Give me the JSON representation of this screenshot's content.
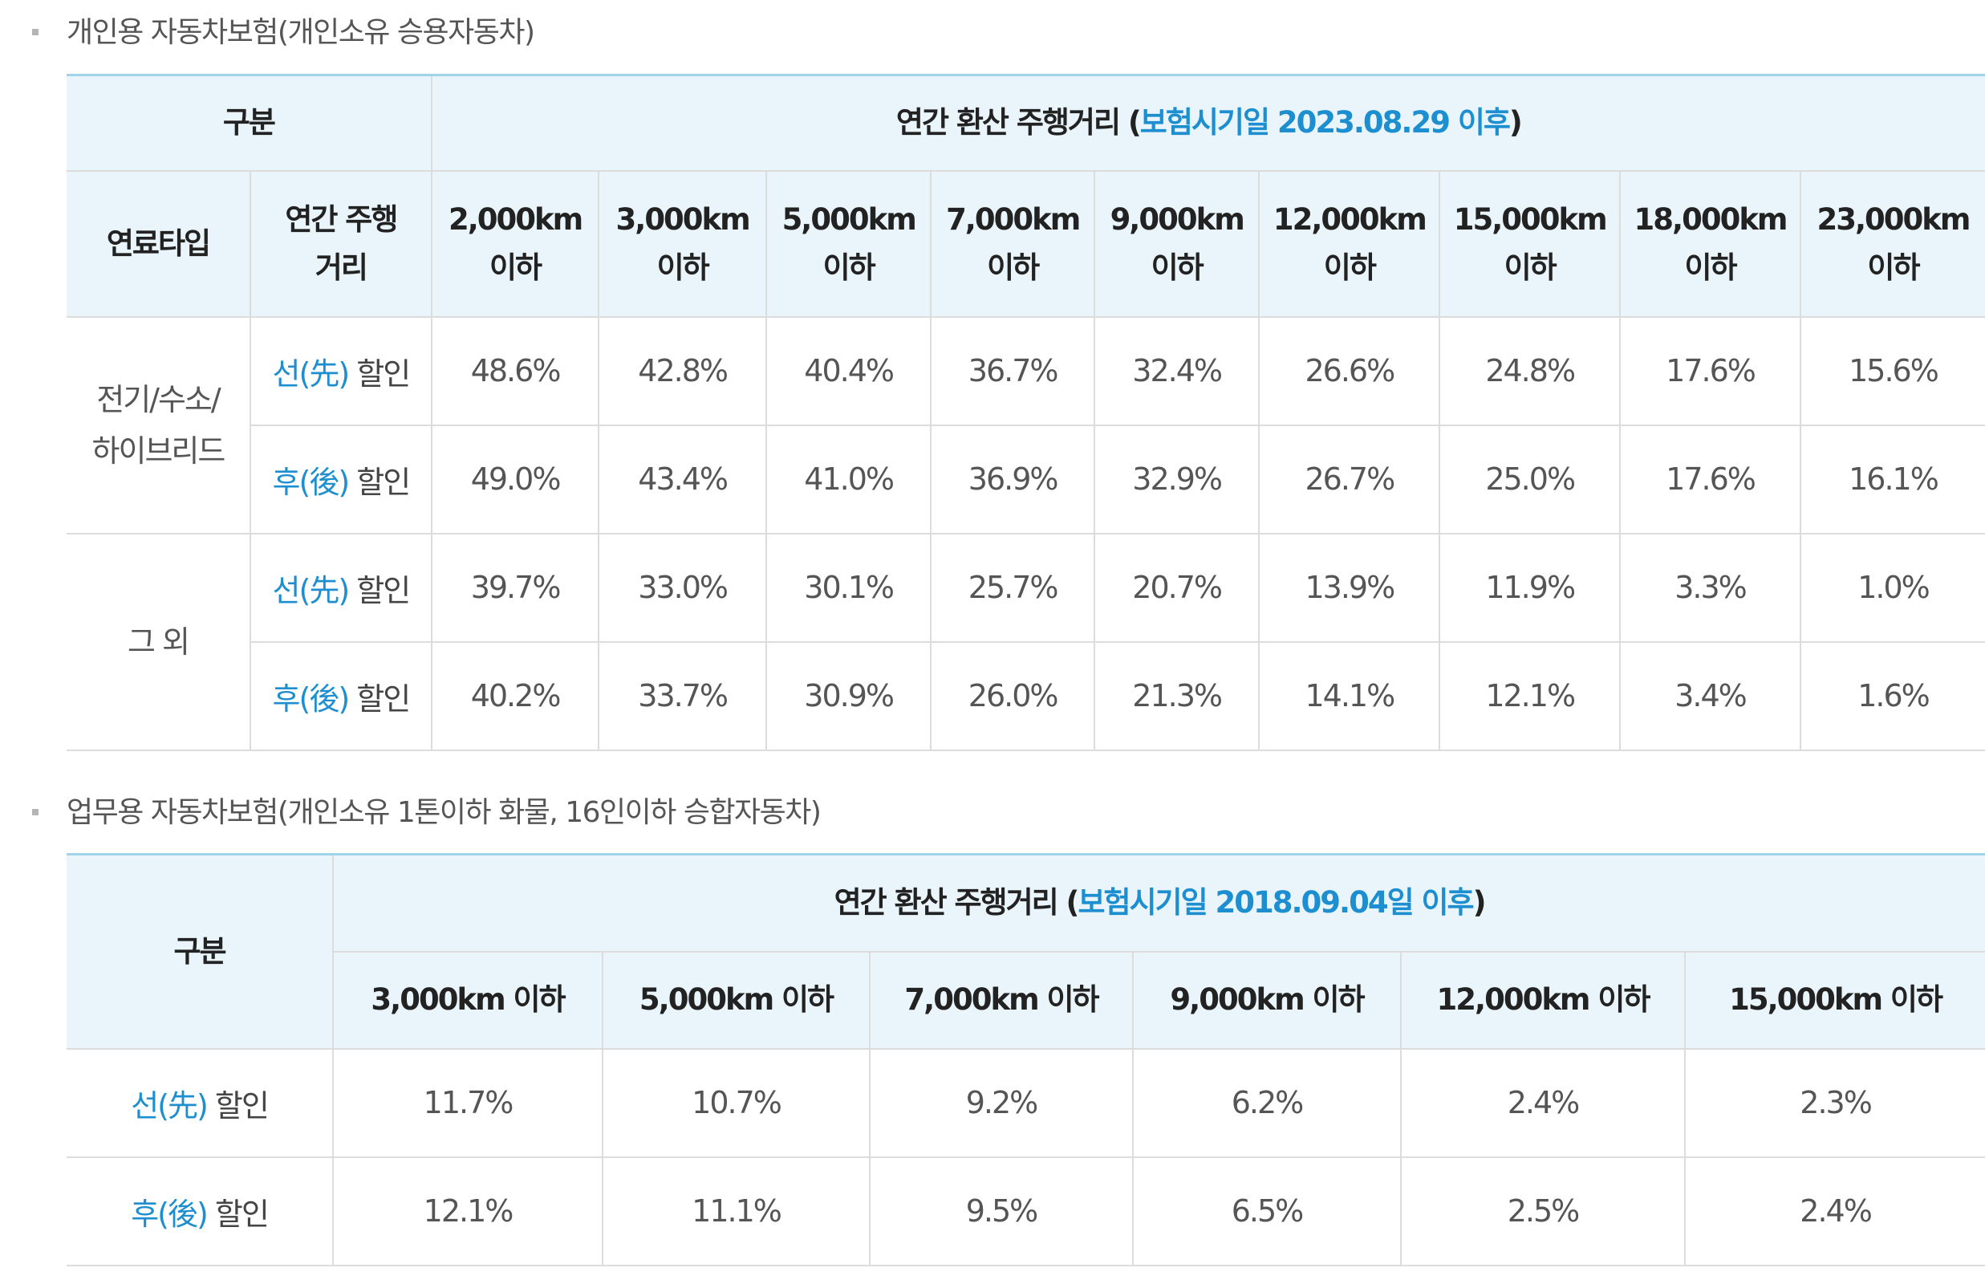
{
  "personal": {
    "title": "개인용 자동차보험(개인소유 승용자동차)",
    "header_category": "구분",
    "header_main_prefix": "연간 환산 주행거리 (",
    "header_main_highlight": "보험시기일 2023.08.29 이후",
    "header_main_suffix": ")",
    "col_fuel_type": "연료타입",
    "col_annual_distance": "연간 주행거리",
    "columns": [
      {
        "top": "2,000km",
        "bottom": "이하"
      },
      {
        "top": "3,000km",
        "bottom": "이하"
      },
      {
        "top": "5,000km",
        "bottom": "이하"
      },
      {
        "top": "7,000km",
        "bottom": "이하"
      },
      {
        "top": "9,000km",
        "bottom": "이하"
      },
      {
        "top": "12,000km",
        "bottom": "이하"
      },
      {
        "top": "15,000km",
        "bottom": "이하"
      },
      {
        "top": "18,000km",
        "bottom": "이하"
      },
      {
        "top": "23,000km",
        "bottom": "이하"
      }
    ],
    "groups": [
      {
        "fuel_line1": "전기/수소/",
        "fuel_line2": "하이브리드",
        "rows": [
          {
            "type_blue": "선(先)",
            "type_suffix": " 할인",
            "values": [
              "48.6%",
              "42.8%",
              "40.4%",
              "36.7%",
              "32.4%",
              "26.6%",
              "24.8%",
              "17.6%",
              "15.6%"
            ]
          },
          {
            "type_blue": "후(後)",
            "type_suffix": " 할인",
            "values": [
              "49.0%",
              "43.4%",
              "41.0%",
              "36.9%",
              "32.9%",
              "26.7%",
              "25.0%",
              "17.6%",
              "16.1%"
            ]
          }
        ]
      },
      {
        "fuel_line1": "그 외",
        "fuel_line2": "",
        "rows": [
          {
            "type_blue": "선(先)",
            "type_suffix": " 할인",
            "values": [
              "39.7%",
              "33.0%",
              "30.1%",
              "25.7%",
              "20.7%",
              "13.9%",
              "11.9%",
              "3.3%",
              "1.0%"
            ]
          },
          {
            "type_blue": "후(後)",
            "type_suffix": " 할인",
            "values": [
              "40.2%",
              "33.7%",
              "30.9%",
              "26.0%",
              "21.3%",
              "14.1%",
              "12.1%",
              "3.4%",
              "1.6%"
            ]
          }
        ]
      }
    ]
  },
  "business": {
    "title": "업무용 자동차보험(개인소유 1톤이하 화물, 16인이하 승합자동차)",
    "header_category": "구분",
    "header_main_prefix": "연간 환산 주행거리 (",
    "header_main_highlight": "보험시기일 2018.09.04일 이후",
    "header_main_suffix": ")",
    "columns": [
      "3,000km 이하",
      "5,000km 이하",
      "7,000km 이하",
      "9,000km 이하",
      "12,000km 이하",
      "15,000km 이하"
    ],
    "rows": [
      {
        "type_blue": "선(先)",
        "type_suffix": " 할인",
        "values": [
          "11.7%",
          "10.7%",
          "9.2%",
          "6.2%",
          "2.4%",
          "2.3%"
        ]
      },
      {
        "type_blue": "후(後)",
        "type_suffix": " 할인",
        "values": [
          "12.1%",
          "11.1%",
          "9.5%",
          "6.5%",
          "2.5%",
          "2.4%"
        ]
      }
    ]
  }
}
